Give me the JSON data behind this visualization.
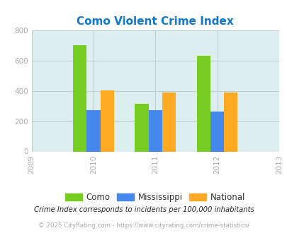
{
  "title": "Como Violent Crime Index",
  "years": [
    2009,
    2010,
    2011,
    2012,
    2013
  ],
  "data_years": [
    2010,
    2011,
    2012
  ],
  "como_values": [
    700,
    315,
    630
  ],
  "mississippi_values": [
    272,
    272,
    265
  ],
  "national_values": [
    403,
    387,
    387
  ],
  "como_color": "#77cc22",
  "mississippi_color": "#4488ee",
  "national_color": "#ffaa22",
  "bg_color": "#ddeef0",
  "title_color": "#1177cc",
  "ylim": [
    0,
    800
  ],
  "yticks": [
    0,
    200,
    400,
    600,
    800
  ],
  "bar_width": 0.22,
  "legend_labels": [
    "Como",
    "Mississippi",
    "National"
  ],
  "footnote1": "Crime Index corresponds to incidents per 100,000 inhabitants",
  "footnote2": "© 2025 CityRating.com - https://www.cityrating.com/crime-statistics/",
  "footnote1_color": "#222222",
  "footnote2_color": "#aaaaaa",
  "tick_color": "#aaaaaa",
  "grid_color": "#bbcccc"
}
